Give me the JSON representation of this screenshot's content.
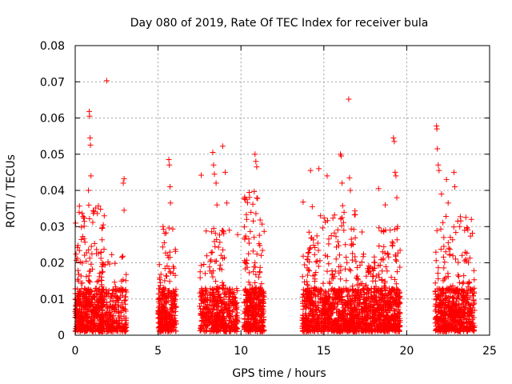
{
  "chart_data": {
    "type": "scatter",
    "title": "Day 080 of 2019, Rate Of TEC Index for receiver bula",
    "xlabel": "GPS time / hours",
    "ylabel": "ROTI / TECUs",
    "xlim": [
      0,
      25
    ],
    "ylim": [
      0,
      0.08
    ],
    "x_ticks": [
      0,
      5,
      10,
      15,
      20,
      25
    ],
    "x_tick_labels": [
      "0",
      "5",
      "10",
      "15",
      "20",
      "25"
    ],
    "y_ticks": [
      0,
      0.01,
      0.02,
      0.03,
      0.04,
      0.05,
      0.06,
      0.07,
      0.08
    ],
    "y_tick_labels": [
      "0",
      "0.01",
      "0.02",
      "0.03",
      "0.04",
      "0.05",
      "0.06",
      "0.07",
      "0.08"
    ],
    "grid": true,
    "marker": "+",
    "color": "#ff0000",
    "series": [
      {
        "name": "ROTI",
        "clusters": [
          {
            "x_start": 0.0,
            "x_end": 1.7,
            "y_max": 0.036,
            "count": 520
          },
          {
            "x_start": 1.5,
            "x_end": 2.3,
            "y_max": 0.026,
            "count": 150
          },
          {
            "x_start": 2.3,
            "x_end": 3.1,
            "y_max": 0.022,
            "count": 130
          },
          {
            "x_start": 5.0,
            "x_end": 6.1,
            "y_max": 0.03,
            "count": 300
          },
          {
            "x_start": 7.5,
            "x_end": 8.1,
            "y_max": 0.022,
            "count": 110
          },
          {
            "x_start": 8.1,
            "x_end": 9.0,
            "y_max": 0.03,
            "count": 230
          },
          {
            "x_start": 9.0,
            "x_end": 9.8,
            "y_max": 0.013,
            "count": 160
          },
          {
            "x_start": 10.2,
            "x_end": 11.4,
            "y_max": 0.04,
            "count": 380
          },
          {
            "x_start": 13.7,
            "x_end": 15.0,
            "y_max": 0.03,
            "count": 320
          },
          {
            "x_start": 15.0,
            "x_end": 16.9,
            "y_max": 0.036,
            "count": 520
          },
          {
            "x_start": 16.9,
            "x_end": 18.3,
            "y_max": 0.023,
            "count": 360
          },
          {
            "x_start": 18.3,
            "x_end": 19.6,
            "y_max": 0.03,
            "count": 380
          },
          {
            "x_start": 21.7,
            "x_end": 23.3,
            "y_max": 0.033,
            "count": 430
          },
          {
            "x_start": 23.3,
            "x_end": 24.1,
            "y_max": 0.033,
            "count": 180
          }
        ],
        "outliers": [
          [
            1.9,
            0.0703
          ],
          [
            0.85,
            0.0618
          ],
          [
            0.87,
            0.0605
          ],
          [
            0.9,
            0.0545
          ],
          [
            0.92,
            0.0525
          ],
          [
            0.95,
            0.044
          ],
          [
            0.8,
            0.04
          ],
          [
            1.75,
            0.033
          ],
          [
            2.95,
            0.0432
          ],
          [
            2.9,
            0.042
          ],
          [
            2.95,
            0.0345
          ],
          [
            5.3,
            0.03
          ],
          [
            5.65,
            0.0485
          ],
          [
            5.68,
            0.047
          ],
          [
            5.72,
            0.041
          ],
          [
            5.75,
            0.0365
          ],
          [
            7.6,
            0.0442
          ],
          [
            7.9,
            0.0288
          ],
          [
            8.3,
            0.0505
          ],
          [
            8.35,
            0.047
          ],
          [
            8.4,
            0.0445
          ],
          [
            8.5,
            0.042
          ],
          [
            8.55,
            0.036
          ],
          [
            8.9,
            0.0522
          ],
          [
            9.05,
            0.045
          ],
          [
            9.15,
            0.0365
          ],
          [
            9.3,
            0.029
          ],
          [
            9.8,
            0.0278
          ],
          [
            10.3,
            0.0375
          ],
          [
            10.85,
            0.05
          ],
          [
            10.9,
            0.048
          ],
          [
            10.95,
            0.0465
          ],
          [
            11.0,
            0.0378
          ],
          [
            13.75,
            0.0368
          ],
          [
            14.2,
            0.0455
          ],
          [
            14.3,
            0.0355
          ],
          [
            14.7,
            0.046
          ],
          [
            14.8,
            0.033
          ],
          [
            15.2,
            0.044
          ],
          [
            15.45,
            0.0275
          ],
          [
            16.0,
            0.05
          ],
          [
            16.05,
            0.0495
          ],
          [
            16.1,
            0.042
          ],
          [
            16.5,
            0.0652
          ],
          [
            16.55,
            0.0435
          ],
          [
            16.6,
            0.04
          ],
          [
            17.3,
            0.0285
          ],
          [
            18.3,
            0.0405
          ],
          [
            18.7,
            0.036
          ],
          [
            19.0,
            0.029
          ],
          [
            19.2,
            0.0545
          ],
          [
            19.25,
            0.0535
          ],
          [
            19.3,
            0.045
          ],
          [
            19.35,
            0.044
          ],
          [
            19.4,
            0.038
          ],
          [
            19.45,
            0.03
          ],
          [
            21.8,
            0.0578
          ],
          [
            21.82,
            0.057
          ],
          [
            21.85,
            0.0515
          ],
          [
            21.9,
            0.047
          ],
          [
            21.95,
            0.0455
          ],
          [
            22.1,
            0.039
          ],
          [
            22.4,
            0.043
          ],
          [
            22.5,
            0.0365
          ],
          [
            22.85,
            0.045
          ],
          [
            22.9,
            0.041
          ],
          [
            23.2,
            0.03
          ],
          [
            23.9,
            0.032
          ]
        ]
      }
    ]
  }
}
